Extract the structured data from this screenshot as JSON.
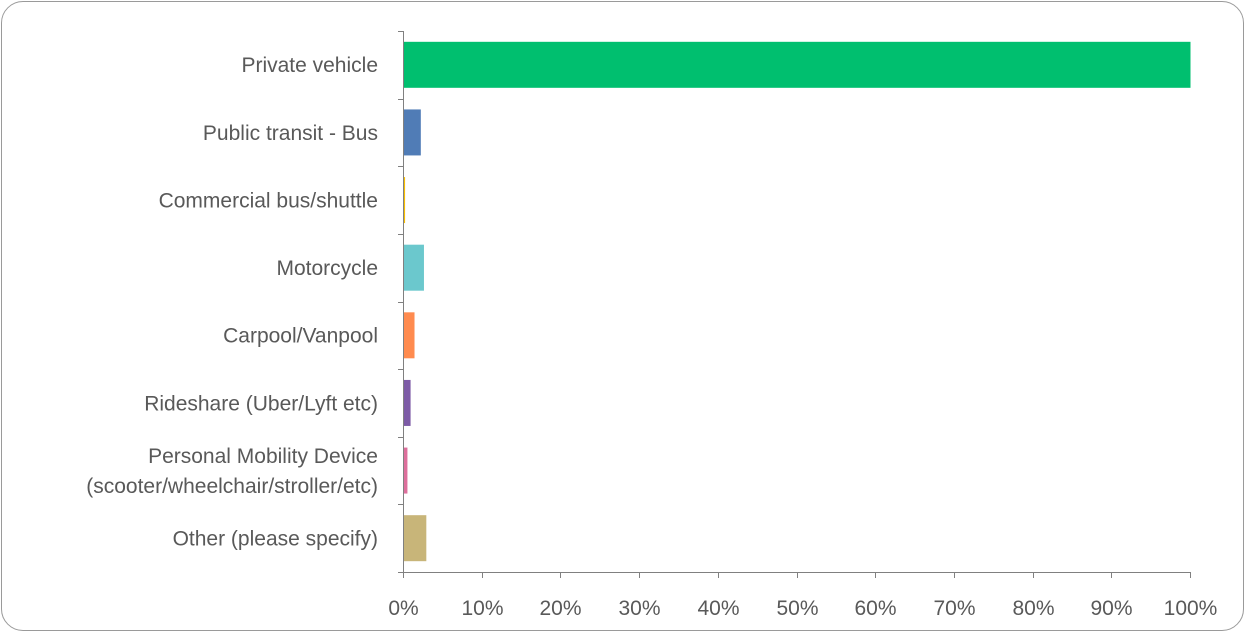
{
  "chart_data": {
    "type": "bar",
    "orientation": "horizontal",
    "title": "",
    "xlabel": "",
    "ylabel": "",
    "xlim": [
      0,
      100
    ],
    "x_tick_labels": [
      "0%",
      "10%",
      "20%",
      "30%",
      "40%",
      "50%",
      "60%",
      "70%",
      "80%",
      "90%",
      "100%"
    ],
    "grid": false,
    "legend": "none",
    "categories": [
      [
        "Private vehicle"
      ],
      [
        "Public transit - Bus"
      ],
      [
        "Commercial bus/shuttle"
      ],
      [
        "Motorcycle"
      ],
      [
        "Carpool/Vanpool"
      ],
      [
        "Rideshare (Uber/Lyft etc)"
      ],
      [
        "Personal Mobility Device",
        "(scooter/wheelchair/stroller/etc)"
      ],
      [
        "Other (please specify)"
      ]
    ],
    "values": [
      100,
      2.2,
      0.2,
      2.6,
      1.4,
      0.9,
      0.5,
      2.9
    ],
    "colors": [
      "#00bf6f",
      "#507cb6",
      "#f9be00",
      "#6bc8cd",
      "#ff8b4f",
      "#7d5ba6",
      "#dd6f9c",
      "#c8b579"
    ]
  }
}
